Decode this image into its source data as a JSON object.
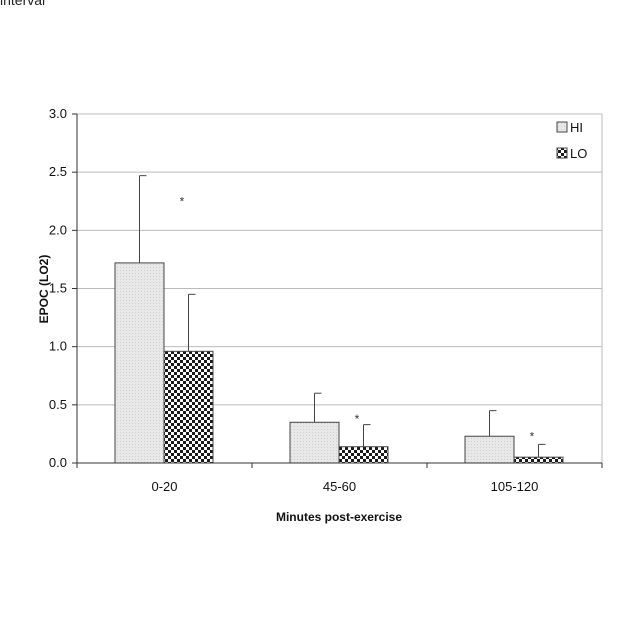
{
  "page": {
    "top_fragment": "interval"
  },
  "chart_data": {
    "type": "bar",
    "categories": [
      "0-20",
      "45-60",
      "105-120"
    ],
    "series": [
      {
        "name": "HI",
        "values": [
          1.72,
          0.35,
          0.23
        ],
        "errors": [
          0.75,
          0.25,
          0.22
        ],
        "fill": "#e6e6e6"
      },
      {
        "name": "LO",
        "values": [
          0.96,
          0.14,
          0.05
        ],
        "errors": [
          0.49,
          0.19,
          0.11
        ],
        "fill": "checker"
      }
    ],
    "significance": [
      "*",
      "*",
      "*"
    ],
    "xlabel": "Minutes post-exercise",
    "ylabel": "EPOC (LO2)",
    "ylim": [
      0,
      3.0
    ],
    "yticks": [
      "0.0",
      "0.5",
      "1.0",
      "1.5",
      "2.0",
      "2.5",
      "3.0"
    ],
    "grid": true,
    "legend_position": "top-right",
    "colors": {
      "bar_outline": "#444444",
      "grid": "#bbbbbb",
      "checker_dark": "#1a1a1a"
    }
  }
}
